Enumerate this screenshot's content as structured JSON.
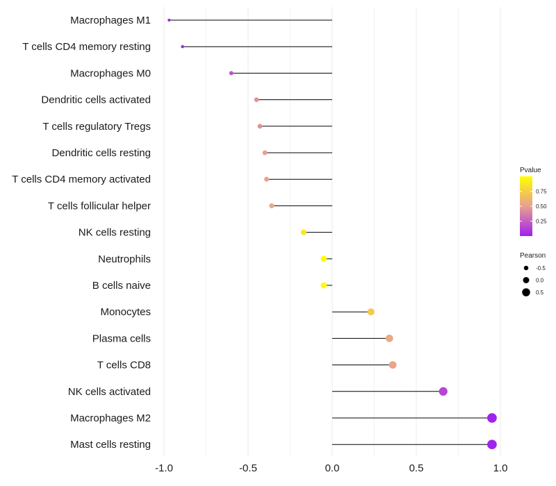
{
  "chart_data": {
    "type": "lollipop",
    "title": "",
    "xlabel": "",
    "ylabel": "",
    "xlim": [
      -1.0,
      1.0
    ],
    "x_ticks": [
      -1.0,
      -0.5,
      0.0,
      0.5,
      1.0
    ],
    "x_tick_labels": [
      "-1.0",
      "-0.5",
      "0.0",
      "0.5",
      "1.0"
    ],
    "baseline": 0.0,
    "grid": true,
    "categories": [
      "Macrophages M1",
      "T cells CD4 memory resting",
      "Macrophages M0",
      "Dendritic cells activated",
      "T cells regulatory  Tregs ",
      "Dendritic cells resting",
      "T cells CD4 memory activated",
      "T cells follicular helper",
      "NK cells resting",
      "Neutrophils",
      "B cells naive",
      "Monocytes",
      "Plasma cells",
      "T cells CD8",
      "NK cells activated",
      "Macrophages M2",
      "Mast cells resting"
    ],
    "pearson": [
      -0.97,
      -0.89,
      -0.6,
      -0.45,
      -0.43,
      -0.4,
      -0.39,
      -0.36,
      -0.17,
      -0.05,
      -0.05,
      0.23,
      0.34,
      0.36,
      0.66,
      0.95,
      0.95
    ],
    "pvalue": [
      0.01,
      0.02,
      0.2,
      0.45,
      0.45,
      0.5,
      0.52,
      0.55,
      0.88,
      0.99,
      0.99,
      0.72,
      0.55,
      0.52,
      0.15,
      0.01,
      0.01
    ],
    "color_legend": {
      "title": "Pvalue",
      "ticks": [
        0.75,
        0.5,
        0.25
      ],
      "tick_labels": [
        "0.75",
        "0.50",
        "0.25"
      ],
      "range": [
        0.0,
        1.0
      ],
      "low_color": "#a020f0",
      "mid_color": "#e8a090",
      "high_color": "#ffff00"
    },
    "size_legend": {
      "title": "Pearson",
      "values": [
        -0.5,
        0.0,
        0.5
      ],
      "labels": [
        "-0.5",
        "0.0",
        "0.5"
      ]
    }
  }
}
